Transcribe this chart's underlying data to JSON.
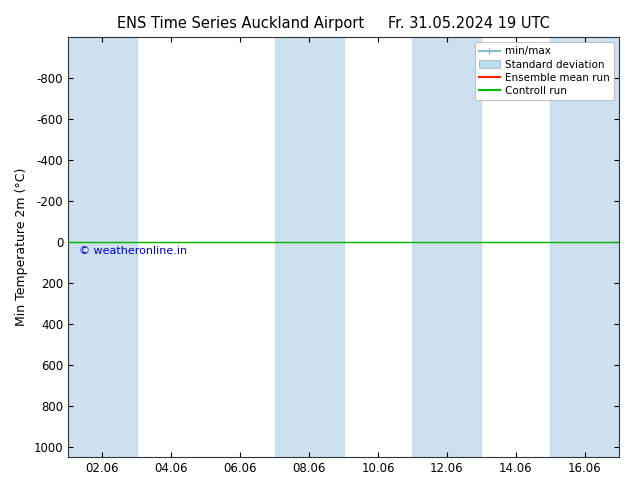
{
  "title_left": "ENS Time Series Auckland Airport",
  "title_right": "Fr. 31.05.2024 19 UTC",
  "ylabel": "Min Temperature 2m (°C)",
  "ylim_top": -1000,
  "ylim_bottom": 1050,
  "yticks": [
    -800,
    -600,
    -400,
    -200,
    0,
    200,
    400,
    600,
    800,
    1000
  ],
  "xlim_start": 0,
  "xlim_end": 16,
  "xtick_labels": [
    "02.06",
    "04.06",
    "06.06",
    "08.06",
    "10.06",
    "12.06",
    "14.06",
    "16.06"
  ],
  "xtick_positions": [
    1,
    3,
    5,
    7,
    9,
    11,
    13,
    15
  ],
  "shaded_bands": [
    [
      0,
      2
    ],
    [
      6,
      8
    ],
    [
      10,
      12
    ],
    [
      14,
      16
    ]
  ],
  "band_color": "#cce0f0",
  "control_run_y": 0.0,
  "control_run_color": "#00bb00",
  "ensemble_mean_color": "#ff2200",
  "minmax_color": "#88bbcc",
  "std_dev_color": "#bbddf0",
  "copyright_text": "© weatheronline.in",
  "copyright_color": "#0000cc",
  "legend_labels": [
    "min/max",
    "Standard deviation",
    "Ensemble mean run",
    "Controll run"
  ],
  "background_color": "#ffffff",
  "axis_background": "#ffffff",
  "title_fontsize": 10.5,
  "tick_fontsize": 8.5,
  "ylabel_fontsize": 9
}
